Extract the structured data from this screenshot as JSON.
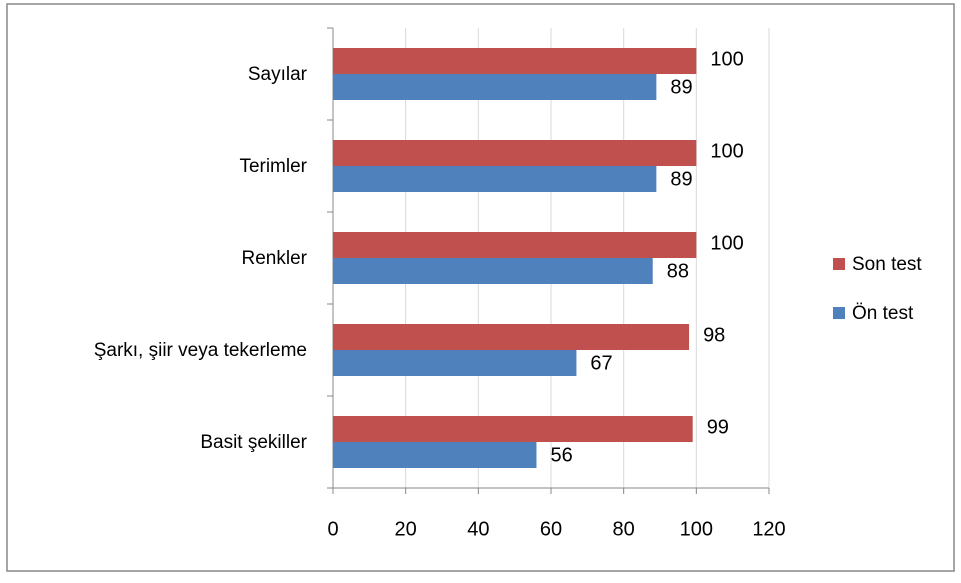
{
  "chart_data": {
    "type": "hbar",
    "categories": [
      "Sayılar",
      "Terimler",
      "Renkler",
      "Şarkı, şiir veya tekerleme",
      "Basit şekiller"
    ],
    "series": [
      {
        "name": "Son test",
        "color": "#c0504d",
        "values": [
          100,
          100,
          100,
          98,
          99
        ]
      },
      {
        "name": "Ön test",
        "color": "#4f81bd",
        "values": [
          89,
          89,
          88,
          67,
          56
        ]
      }
    ],
    "xlim": [
      0,
      120
    ],
    "xticks": [
      0,
      20,
      40,
      60,
      80,
      100,
      120
    ],
    "grid": true,
    "legend": "right"
  }
}
